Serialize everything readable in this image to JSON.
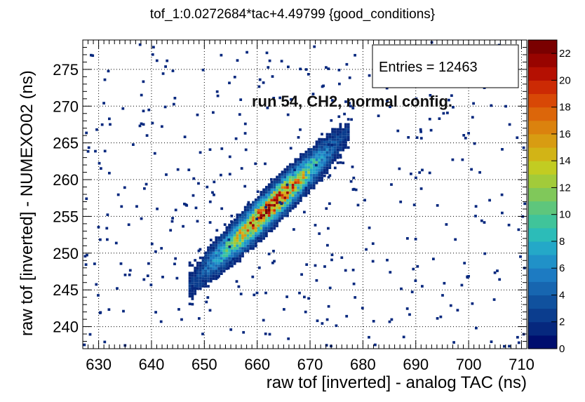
{
  "chart_data": {
    "type": "heatmap",
    "title": "tof_1:0.0272684*tac+4.49799 {good_conditions}",
    "xlabel": "raw tof [inverted] - analog TAC (ns)",
    "ylabel": "raw tof [inverted] - NUMEXO02 (ns)",
    "xlim": [
      627,
      711
    ],
    "ylim": [
      237,
      279
    ],
    "x_ticks": [
      630,
      640,
      650,
      660,
      670,
      680,
      690,
      700,
      710
    ],
    "y_ticks": [
      240,
      245,
      250,
      255,
      260,
      265,
      270,
      275
    ],
    "grid": true,
    "colorbar": {
      "min": 0,
      "max": 23,
      "ticks": [
        0,
        2,
        4,
        6,
        8,
        10,
        12,
        14,
        16,
        18,
        20,
        22
      ],
      "colors": [
        "#000e6e",
        "#06287e",
        "#0b3d8e",
        "#10519e",
        "#1766b0",
        "#1d7bc2",
        "#2091c8",
        "#24a8c8",
        "#2cbcb8",
        "#40c49a",
        "#5ec67c",
        "#80c85a",
        "#a2cb3a",
        "#c2cc22",
        "#d2b416",
        "#d89c12",
        "#db820e",
        "#dc660a",
        "#d84806",
        "#cc2a04",
        "#b51002",
        "#980400",
        "#7a0000"
      ]
    },
    "band": {
      "description_free": true,
      "x_range": [
        647,
        677
      ],
      "center_line": [
        [
          648,
          246.3
        ],
        [
          676,
          265.5
        ]
      ],
      "half_width_y": 2.2,
      "peak_x": 662,
      "peak_count": 23
    },
    "stats": {
      "entries_label": "Entries = 12463"
    },
    "annotation": "run 54, CH2, normal config."
  }
}
